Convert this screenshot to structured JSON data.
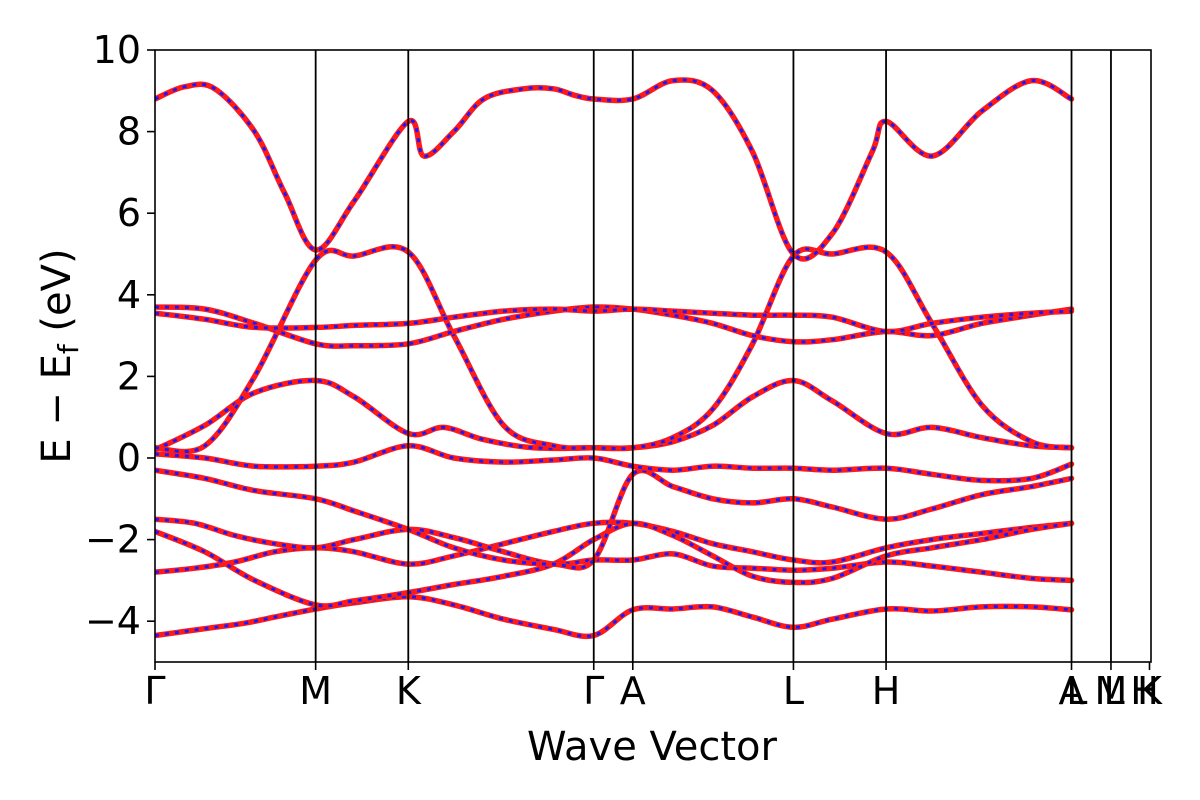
{
  "chart_data": {
    "type": "line",
    "xlabel": "Wave Vector",
    "ylabel": "E − E_f (eV)",
    "ylabel_main": "E  −  E",
    "ylabel_sub": "f",
    "ylabel_unit": " (eV)",
    "ylim": [
      -5,
      10
    ],
    "yticks": [
      {
        "value": -4,
        "label": "−4"
      },
      {
        "value": -2,
        "label": "−2"
      },
      {
        "value": 0,
        "label": "0"
      },
      {
        "value": 2,
        "label": "2"
      },
      {
        "value": 4,
        "label": "4"
      },
      {
        "value": 6,
        "label": "6"
      },
      {
        "value": 8,
        "label": "8"
      },
      {
        "value": 10,
        "label": "10"
      }
    ],
    "xrange": [
      0,
      1
    ],
    "kpoints": [
      {
        "pos": 0.0,
        "label": "Γ"
      },
      {
        "pos": 0.1613,
        "label": "M"
      },
      {
        "pos": 0.2543,
        "label": "K"
      },
      {
        "pos": 0.4405,
        "label": "Γ"
      },
      {
        "pos": 0.4797,
        "label": "A"
      },
      {
        "pos": 0.641,
        "label": "L"
      },
      {
        "pos": 0.734,
        "label": "H"
      },
      {
        "pos": 0.9202,
        "label": "A"
      },
      {
        "pos": 0.9598,
        "label": "M"
      },
      {
        "pos": 0.9985,
        "label": "K"
      }
    ],
    "extra_labels": [
      {
        "pos": 0.9255,
        "label": "L"
      },
      {
        "pos": 0.963,
        "label": "L"
      },
      {
        "pos": 0.9935,
        "label": "H"
      }
    ],
    "series": [
      {
        "x": [
          0,
          0.03,
          0.06,
          0.09,
          0.12,
          0.1613,
          0.2,
          0.2543,
          0.3,
          0.35,
          0.4,
          0.4405,
          0.4797,
          0.52,
          0.56,
          0.6,
          0.641,
          0.68,
          0.734,
          0.78,
          0.83,
          0.88,
          0.9202
        ],
        "y": [
          -4.35,
          -4.25,
          -4.15,
          -4.05,
          -3.9,
          -3.7,
          -3.55,
          -3.4,
          -3.6,
          -3.95,
          -4.2,
          -4.35,
          -3.72,
          -3.7,
          -3.65,
          -3.9,
          -4.15,
          -3.95,
          -3.7,
          -3.75,
          -3.65,
          -3.65,
          -3.72
        ]
      },
      {
        "x": [
          0,
          0.04,
          0.08,
          0.12,
          0.1613,
          0.2,
          0.2543,
          0.3,
          0.35,
          0.4,
          0.4405,
          0.4797,
          0.52,
          0.56,
          0.6,
          0.641,
          0.68,
          0.734,
          0.78,
          0.83,
          0.88,
          0.9202
        ],
        "y": [
          -2.8,
          -2.7,
          -2.55,
          -2.3,
          -2.2,
          -2.3,
          -2.6,
          -2.4,
          -2.1,
          -1.8,
          -1.6,
          -1.6,
          -1.8,
          -2.1,
          -2.3,
          -2.5,
          -2.55,
          -2.2,
          -2.0,
          -1.85,
          -1.7,
          -1.6
        ]
      },
      {
        "x": [
          0,
          0.04,
          0.08,
          0.12,
          0.1613,
          0.2,
          0.2543,
          0.3,
          0.35,
          0.4,
          0.4405,
          0.4797,
          0.52,
          0.56,
          0.6,
          0.641,
          0.68,
          0.734,
          0.78,
          0.83,
          0.88,
          0.9202
        ],
        "y": [
          -1.5,
          -1.6,
          -1.9,
          -2.1,
          -2.2,
          -2.0,
          -1.75,
          -1.95,
          -2.3,
          -2.6,
          -2.5,
          -2.5,
          -2.35,
          -2.65,
          -2.7,
          -2.75,
          -2.7,
          -2.55,
          -2.65,
          -2.8,
          -2.95,
          -3.0
        ]
      },
      {
        "x": [
          0,
          0.05,
          0.1,
          0.1613,
          0.2,
          0.2543,
          0.3,
          0.35,
          0.4,
          0.4405,
          0.4797,
          0.52,
          0.56,
          0.6,
          0.641,
          0.68,
          0.734,
          0.78,
          0.83,
          0.88,
          0.9202
        ],
        "y": [
          -1.8,
          -2.3,
          -3.0,
          -3.6,
          -3.5,
          -3.3,
          -3.1,
          -2.9,
          -2.6,
          -2.0,
          -1.6,
          -1.9,
          -2.4,
          -2.9,
          -3.05,
          -2.95,
          -2.4,
          -2.2,
          -2.0,
          -1.75,
          -1.6
        ]
      },
      {
        "x": [
          0,
          0.05,
          0.1,
          0.1613,
          0.2,
          0.2543,
          0.3,
          0.35,
          0.4,
          0.4405,
          0.4797,
          0.52,
          0.56,
          0.6,
          0.641,
          0.68,
          0.734,
          0.78,
          0.83,
          0.88,
          0.9202
        ],
        "y": [
          -0.3,
          -0.5,
          -0.8,
          -1.0,
          -1.3,
          -1.75,
          -2.2,
          -2.5,
          -2.6,
          -2.5,
          -0.4,
          -0.7,
          -1.0,
          -1.1,
          -1.0,
          -1.2,
          -1.5,
          -1.25,
          -0.9,
          -0.7,
          -0.5
        ]
      },
      {
        "x": [
          0,
          0.05,
          0.1,
          0.1613,
          0.2,
          0.2543,
          0.3,
          0.35,
          0.4,
          0.4405,
          0.4797,
          0.52,
          0.56,
          0.6,
          0.641,
          0.68,
          0.734,
          0.78,
          0.83,
          0.88,
          0.9202
        ],
        "y": [
          0.1,
          0.0,
          -0.2,
          -0.2,
          -0.1,
          0.3,
          0.0,
          -0.1,
          -0.05,
          0.0,
          -0.2,
          -0.3,
          -0.2,
          -0.25,
          -0.25,
          -0.3,
          -0.25,
          -0.4,
          -0.55,
          -0.5,
          -0.15
        ]
      },
      {
        "x": [
          0,
          0.05,
          0.1,
          0.1613,
          0.2,
          0.2543,
          0.29,
          0.33,
          0.38,
          0.4405,
          0.4797,
          0.52,
          0.56,
          0.6,
          0.641,
          0.68,
          0.734,
          0.78,
          0.83,
          0.88,
          0.9202
        ],
        "y": [
          0.2,
          0.8,
          1.6,
          1.9,
          1.5,
          0.6,
          0.75,
          0.45,
          0.25,
          0.25,
          0.25,
          0.4,
          0.8,
          1.5,
          1.9,
          1.4,
          0.6,
          0.75,
          0.5,
          0.3,
          0.25
        ]
      },
      {
        "x": [
          0,
          0.05,
          0.1,
          0.1613,
          0.2,
          0.2543,
          0.3,
          0.35,
          0.4,
          0.4405,
          0.4797,
          0.52,
          0.56,
          0.6,
          0.641,
          0.68,
          0.734,
          0.78,
          0.83,
          0.88,
          0.9202
        ],
        "y": [
          0.25,
          0.3,
          2.0,
          4.85,
          4.95,
          5.05,
          3.0,
          0.8,
          0.3,
          0.25,
          0.25,
          0.5,
          1.2,
          2.8,
          4.95,
          5.0,
          5.05,
          3.3,
          1.3,
          0.4,
          0.25
        ]
      },
      {
        "x": [
          0,
          0.05,
          0.1,
          0.1613,
          0.2,
          0.2543,
          0.3,
          0.35,
          0.4,
          0.4405,
          0.4797,
          0.52,
          0.56,
          0.6,
          0.641,
          0.68,
          0.734,
          0.78,
          0.83,
          0.88,
          0.9202
        ],
        "y": [
          3.7,
          3.65,
          3.3,
          2.8,
          2.75,
          2.8,
          3.1,
          3.4,
          3.6,
          3.7,
          3.65,
          3.5,
          3.3,
          3.0,
          2.85,
          2.9,
          3.1,
          3.0,
          3.3,
          3.5,
          3.65
        ]
      },
      {
        "x": [
          0,
          0.05,
          0.1,
          0.1613,
          0.2,
          0.2543,
          0.3,
          0.35,
          0.4,
          0.4405,
          0.4797,
          0.52,
          0.56,
          0.6,
          0.641,
          0.68,
          0.734,
          0.78,
          0.83,
          0.88,
          0.9202
        ],
        "y": [
          3.55,
          3.4,
          3.2,
          3.2,
          3.25,
          3.3,
          3.45,
          3.6,
          3.65,
          3.6,
          3.65,
          3.6,
          3.55,
          3.5,
          3.5,
          3.45,
          3.1,
          3.3,
          3.45,
          3.55,
          3.6
        ]
      },
      {
        "x": [
          0,
          0.03,
          0.06,
          0.1,
          0.13,
          0.1613,
          0.2,
          0.2543,
          0.27,
          0.3,
          0.33,
          0.37,
          0.4,
          0.42,
          0.4405,
          0.4797,
          0.52,
          0.56,
          0.6,
          0.641,
          0.68,
          0.72,
          0.734,
          0.78,
          0.83,
          0.88,
          0.9202
        ],
        "y": [
          8.8,
          9.1,
          9.05,
          8.0,
          6.5,
          5.1,
          6.3,
          8.25,
          7.4,
          8.0,
          8.8,
          9.05,
          9.05,
          8.9,
          8.8,
          8.8,
          9.25,
          9.0,
          7.5,
          5.0,
          5.5,
          7.5,
          8.25,
          7.4,
          8.5,
          9.25,
          8.8
        ]
      }
    ]
  }
}
